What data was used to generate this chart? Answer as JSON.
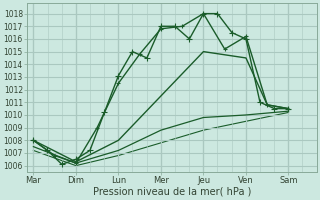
{
  "bg_color": "#cce8e0",
  "grid_color": "#aac8c0",
  "line_color": "#1a5c2a",
  "x_labels": [
    "Mar",
    "Dim",
    "Lun",
    "Mer",
    "Jeu",
    "Ven",
    "Sam"
  ],
  "ylim": [
    1005.5,
    1018.8
  ],
  "yticks": [
    1006,
    1007,
    1008,
    1009,
    1010,
    1011,
    1012,
    1013,
    1014,
    1015,
    1016,
    1017,
    1018
  ],
  "xlabel": "Pression niveau de la mer( hPa )",
  "figsize": [
    3.2,
    2.0
  ],
  "dpi": 100,
  "lines": [
    {
      "x": [
        0,
        0.33,
        0.67,
        1.0,
        1.33,
        1.67,
        2.0,
        2.33,
        2.67,
        3.0,
        3.33,
        3.67,
        4.0,
        4.33,
        4.67,
        5.0,
        5.33,
        5.67,
        6.0
      ],
      "y": [
        1008.0,
        1007.2,
        1006.1,
        1006.5,
        1007.2,
        1010.2,
        1013.1,
        1015.0,
        1014.5,
        1017.0,
        1017.0,
        1016.0,
        1018.0,
        1018.0,
        1016.5,
        1016.0,
        1011.0,
        1010.5,
        1010.5
      ],
      "marker": "+",
      "markersize": 4,
      "linewidth": 1.0,
      "linestyle": "-",
      "zorder": 5
    },
    {
      "x": [
        0,
        0.5,
        1.0,
        1.5,
        2.0,
        2.5,
        3.0,
        3.5,
        4.0,
        4.5,
        5.0,
        5.5,
        6.0
      ],
      "y": [
        1008.0,
        1006.8,
        1006.2,
        1009.0,
        1012.5,
        1014.8,
        1016.8,
        1017.0,
        1018.0,
        1015.2,
        1016.2,
        1010.8,
        1010.5
      ],
      "marker": "+",
      "markersize": 3.5,
      "linewidth": 1.0,
      "linestyle": "-",
      "zorder": 4
    },
    {
      "x": [
        0,
        1.0,
        2.0,
        3.0,
        4.0,
        5.0,
        5.5,
        6.0
      ],
      "y": [
        1008.0,
        1006.3,
        1008.0,
        1011.5,
        1015.0,
        1014.5,
        1010.8,
        1010.5
      ],
      "marker": null,
      "markersize": 0,
      "linewidth": 1.0,
      "linestyle": "-",
      "zorder": 3
    },
    {
      "x": [
        0,
        1.0,
        2.0,
        3.0,
        4.0,
        5.0,
        6.0
      ],
      "y": [
        1007.5,
        1006.2,
        1007.2,
        1008.8,
        1009.8,
        1010.0,
        1010.3
      ],
      "marker": null,
      "markersize": 0,
      "linewidth": 0.9,
      "linestyle": "-",
      "zorder": 2
    },
    {
      "x": [
        0,
        1.0,
        2.0,
        3.0,
        4.0,
        5.0,
        6.0
      ],
      "y": [
        1007.2,
        1006.0,
        1006.8,
        1007.8,
        1008.8,
        1009.5,
        1010.2
      ],
      "marker": null,
      "markersize": 0,
      "linewidth": 0.8,
      "linestyle": "-",
      "zorder": 1
    }
  ]
}
